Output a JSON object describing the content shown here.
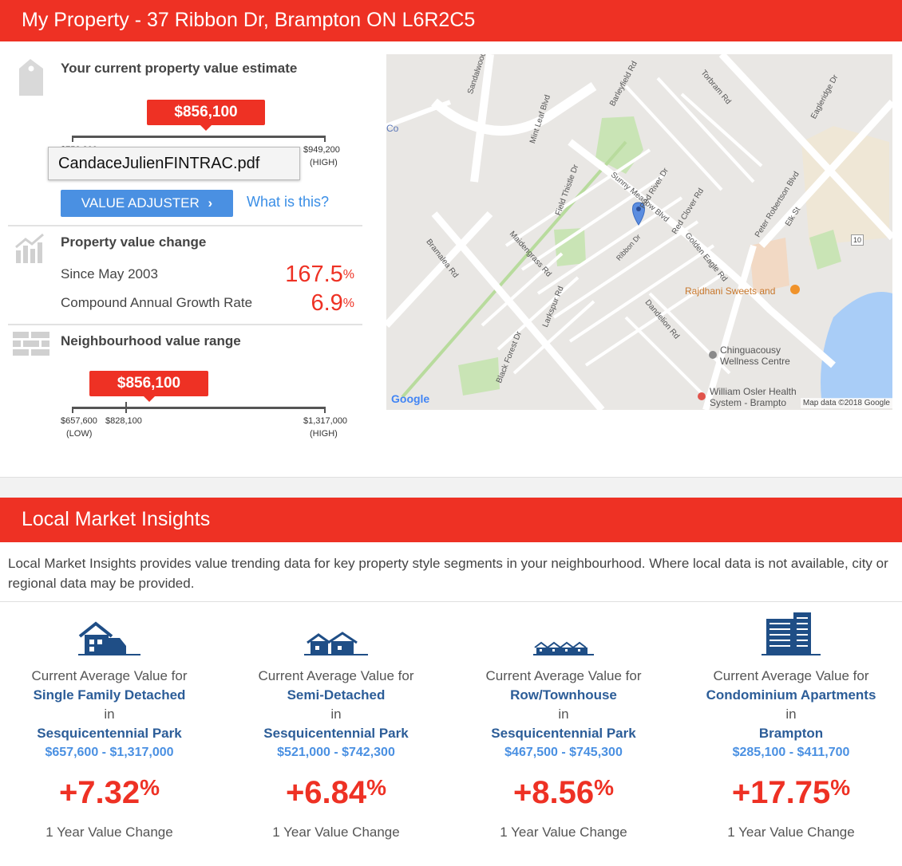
{
  "header": {
    "title": "My Property - 37 Ribbon Dr, Brampton ON L6R2C5"
  },
  "estimate": {
    "title": "Your current property value estimate",
    "value": "$856,100",
    "low_value": "$752,200",
    "high_value": "$949,200",
    "high_label": "(HIGH)",
    "tooltip_text": "CandaceJulienFINTRAC.pdf",
    "adjuster_label": "VALUE ADJUSTER",
    "what_is_this": "What is this?"
  },
  "change": {
    "title": "Property value change",
    "since_label": "Since May 2003",
    "since_value": "167.5",
    "cagr_label": "Compound Annual Growth Rate",
    "cagr_value": "6.9",
    "percent": "%"
  },
  "neighbourhood": {
    "title": "Neighbourhood value range",
    "value": "$856,100",
    "low_value": "$657,600",
    "low_label": "(LOW)",
    "mid_value": "$828,100",
    "high_value": "$1,317,000",
    "high_label": "(HIGH)",
    "value_fraction": 0.3
  },
  "map": {
    "labels": {
      "co": "Co",
      "sandalwood": "Sandalwood Pkwy E",
      "mint": "Mint Leaf Blvd",
      "barleyfield": "Barleyfield Rd",
      "torbram": "Torbram Rd",
      "eagleridge": "Eagleridge Dr",
      "sunny": "Sunny Meadow Blvd",
      "redriver": "Red River Dr",
      "redclover": "Red Clover Rd",
      "golden": "Golden Eagle Rd",
      "peter": "Peter Robertson Blvd",
      "elk": "Elk St",
      "field": "Field Thistle Dr",
      "maidengrass": "Maidengrass Rd",
      "ribbon": "Ribbon Dr",
      "bramalea": "Bramalea Rd",
      "larkspur": "Larkspur Rd",
      "blackforest": "Black Forest Dr",
      "dandelion": "Dandelion Rd",
      "rajdhani": "Rajdhani Sweets and",
      "chinguacousy1": "Chinguacousy",
      "chinguacousy2": "Wellness Centre",
      "osler1": "William Osler Health",
      "osler2": "System - Brampto",
      "mapdata": "Map data ©2018 Google",
      "google": "Google",
      "hwy10": "10"
    }
  },
  "insights": {
    "title": "Local Market Insights",
    "intro": "Local Market Insights provides value trending data for key property style segments in your neighbourhood. Where local data is not available, city or regional data may be provided.",
    "columns": [
      {
        "icon": "single-family-house-icon",
        "label": "Current Average Value for",
        "segment": "Single Family Detached",
        "in": "in",
        "area": "Sesquicentennial Park",
        "range": "$657,600 - $1,317,000",
        "change": "+7.32",
        "pct": "%",
        "change_label": "1 Year Value Change"
      },
      {
        "icon": "semi-detached-icon",
        "label": "Current Average Value for",
        "segment": "Semi-Detached",
        "in": "in",
        "area": "Sesquicentennial Park",
        "range": "$521,000 - $742,300",
        "change": "+6.84",
        "pct": "%",
        "change_label": "1 Year Value Change"
      },
      {
        "icon": "townhouse-icon",
        "label": "Current Average Value for",
        "segment": "Row/Townhouse",
        "in": "in",
        "area": "Sesquicentennial Park",
        "range": "$467,500 - $745,300",
        "change": "+8.56",
        "pct": "%",
        "change_label": "1 Year Value Change"
      },
      {
        "icon": "condo-building-icon",
        "label": "Current Average Value for",
        "segment": "Condominium Apartments",
        "in": "in",
        "area": "Brampton",
        "range": "$285,100 - $411,700",
        "change": "+17.75",
        "pct": "%",
        "change_label": "1 Year Value Change"
      }
    ]
  },
  "colors": {
    "accent": "#ee3124",
    "link": "#4a90e2",
    "segment": "#2c5d98"
  }
}
